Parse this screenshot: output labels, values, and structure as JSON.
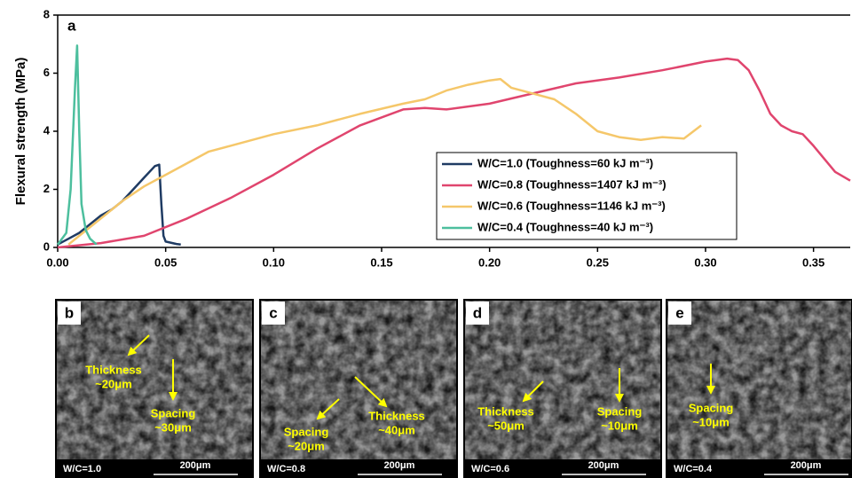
{
  "chart_data": {
    "type": "line",
    "label": "a",
    "y_label": "Flexural strength (MPa)",
    "xlim": [
      0,
      0.367
    ],
    "ylim": [
      0,
      8
    ],
    "xticks": [
      {
        "value": 0,
        "label": "0.00"
      },
      0.05,
      {
        "value": 0.1,
        "label": "0.10"
      },
      0.15,
      {
        "value": 0.2,
        "label": "0.20"
      },
      0.25,
      {
        "value": 0.3,
        "label": "0.30"
      },
      0.35
    ],
    "yticks": [
      0,
      2,
      4,
      6,
      8
    ],
    "series": [
      {
        "name": "W/C=1.0 (Toughness=60 kJ m⁻³)",
        "color": "#1f3b63",
        "x": [
          0,
          0.005,
          0.01,
          0.015,
          0.02,
          0.025,
          0.03,
          0.035,
          0.04,
          0.045,
          0.047,
          0.048,
          0.049,
          0.05,
          0.055,
          0.057
        ],
        "values": [
          0.1,
          0.3,
          0.5,
          0.8,
          1.1,
          1.3,
          1.6,
          2.0,
          2.4,
          2.8,
          2.85,
          1.5,
          0.4,
          0.2,
          0.12,
          0.1
        ]
      },
      {
        "name": "W/C=0.8 (Toughness=1407 kJ m⁻³)",
        "color": "#e0456e",
        "x": [
          0,
          0.02,
          0.04,
          0.06,
          0.08,
          0.1,
          0.12,
          0.14,
          0.16,
          0.17,
          0.18,
          0.2,
          0.22,
          0.24,
          0.26,
          0.28,
          0.3,
          0.31,
          0.315,
          0.32,
          0.325,
          0.33,
          0.335,
          0.34,
          0.345,
          0.35,
          0.36,
          0.367
        ],
        "values": [
          0,
          0.15,
          0.4,
          1.0,
          1.7,
          2.5,
          3.4,
          4.2,
          4.75,
          4.8,
          4.75,
          4.95,
          5.3,
          5.65,
          5.85,
          6.1,
          6.4,
          6.5,
          6.45,
          6.1,
          5.4,
          4.6,
          4.2,
          4.0,
          3.9,
          3.5,
          2.6,
          2.3
        ]
      },
      {
        "name": "W/C=0.6 (Toughness=1146 kJ m⁻³)",
        "color": "#f5c76a",
        "x": [
          0.005,
          0.01,
          0.02,
          0.03,
          0.04,
          0.05,
          0.06,
          0.07,
          0.08,
          0.1,
          0.12,
          0.14,
          0.16,
          0.17,
          0.18,
          0.19,
          0.2,
          0.205,
          0.21,
          0.22,
          0.23,
          0.24,
          0.25,
          0.26,
          0.27,
          0.28,
          0.29,
          0.298
        ],
        "values": [
          0.1,
          0.4,
          1.0,
          1.6,
          2.1,
          2.5,
          2.9,
          3.3,
          3.5,
          3.9,
          4.2,
          4.6,
          4.95,
          5.1,
          5.4,
          5.6,
          5.75,
          5.8,
          5.5,
          5.3,
          5.1,
          4.6,
          4.0,
          3.8,
          3.7,
          3.8,
          3.75,
          4.2
        ]
      },
      {
        "name": "W/C=0.4 (Toughness=40 kJ m⁻³)",
        "color": "#4dbf9e",
        "x": [
          0,
          0.004,
          0.006,
          0.008,
          0.009,
          0.01,
          0.011,
          0.013,
          0.015,
          0.018
        ],
        "values": [
          0.1,
          0.5,
          2,
          5.5,
          6.95,
          4,
          1.5,
          0.6,
          0.3,
          0.1
        ]
      }
    ]
  },
  "panels": [
    {
      "label": "b",
      "annotations": [
        {
          "lines": [
            "Thickness",
            "~20μm"
          ]
        },
        {
          "lines": [
            "Spacing",
            "~30μm"
          ]
        }
      ],
      "sample": "W/C=1.0",
      "scale_bar": "200μm"
    },
    {
      "label": "c",
      "annotations": [
        {
          "lines": [
            "Spacing",
            "~20μm"
          ]
        },
        {
          "lines": [
            "Thickness",
            "~40μm"
          ]
        }
      ],
      "sample": "W/C=0.8",
      "scale_bar": "200μm"
    },
    {
      "label": "d",
      "annotations": [
        {
          "lines": [
            "Thickness",
            "~50μm"
          ]
        },
        {
          "lines": [
            "Spacing",
            "~10μm"
          ]
        }
      ],
      "sample": "W/C=0.6",
      "scale_bar": "200μm"
    },
    {
      "label": "e",
      "annotations": [
        {
          "lines": [
            "Spacing",
            "~10μm"
          ]
        }
      ],
      "sample": "W/C=0.4",
      "scale_bar": "200μm"
    }
  ]
}
